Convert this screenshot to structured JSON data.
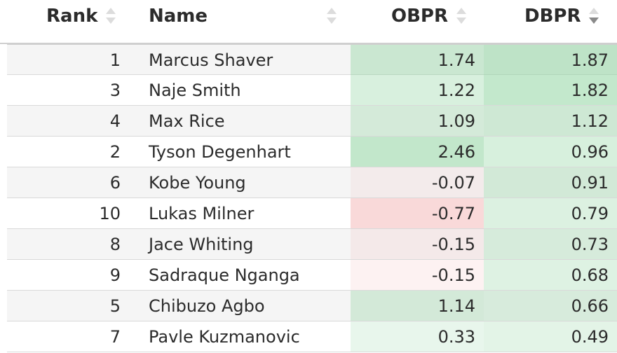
{
  "columns": {
    "rank": "Rank",
    "name": "Name",
    "obpr": "OBPR",
    "dbpr": "DBPR"
  },
  "sort": {
    "column": "DBPR",
    "direction": "descending"
  },
  "colors": {
    "positive": "#b9e6c4",
    "negative": "#f6d6d6",
    "neutral": "#ffffff"
  },
  "rows": [
    {
      "rank": "1",
      "name": "Marcus Shaver",
      "obpr": "1.74",
      "dbpr": "1.87"
    },
    {
      "rank": "3",
      "name": "Naje Smith",
      "obpr": "1.22",
      "dbpr": "1.82"
    },
    {
      "rank": "4",
      "name": "Max Rice",
      "obpr": "1.09",
      "dbpr": "1.12"
    },
    {
      "rank": "2",
      "name": "Tyson Degenhart",
      "obpr": "2.46",
      "dbpr": "0.96"
    },
    {
      "rank": "6",
      "name": "Kobe Young",
      "obpr": "-0.07",
      "dbpr": "0.91"
    },
    {
      "rank": "10",
      "name": "Lukas Milner",
      "obpr": "-0.77",
      "dbpr": "0.79"
    },
    {
      "rank": "8",
      "name": "Jace Whiting",
      "obpr": "-0.15",
      "dbpr": "0.73"
    },
    {
      "rank": "9",
      "name": "Sadraque Nganga",
      "obpr": "-0.15",
      "dbpr": "0.68"
    },
    {
      "rank": "5",
      "name": "Chibuzo Agbo",
      "obpr": "1.14",
      "dbpr": "0.66"
    },
    {
      "rank": "7",
      "name": "Pavle Kuzmanovic",
      "obpr": "0.33",
      "dbpr": "0.49"
    }
  ]
}
